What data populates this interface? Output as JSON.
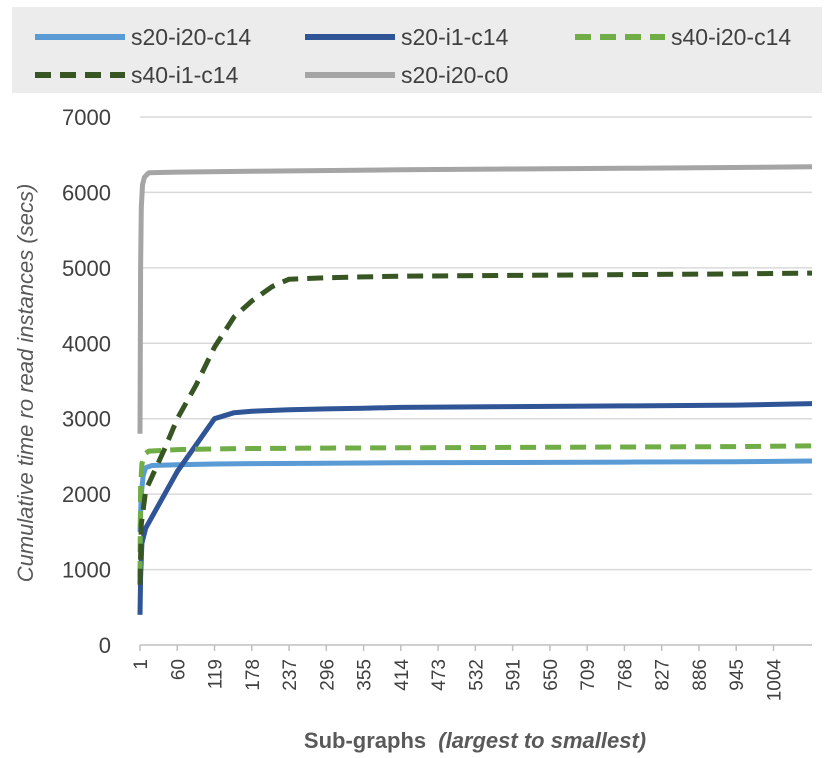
{
  "chart_data": {
    "type": "line",
    "title": "",
    "xlabel": "Sub-graphs",
    "xlabel_suffix": "(largest to smallest)",
    "ylabel": "Cumulative time ro read instances (secs)",
    "ylim": [
      0,
      7000
    ],
    "yticks": [
      "0",
      "1000",
      "2000",
      "3000",
      "4000",
      "5000",
      "6000",
      "7000"
    ],
    "xlim": [
      1,
      1065
    ],
    "xticks": [
      1,
      60,
      119,
      178,
      237,
      296,
      355,
      414,
      473,
      532,
      591,
      650,
      709,
      768,
      827,
      886,
      945,
      1004
    ],
    "grid": true,
    "legend_position": "top",
    "series": [
      {
        "name": "s20-i20-c14",
        "color": "#5b9bd5",
        "dash": "solid",
        "x": [
          1,
          3,
          6,
          10,
          20,
          60,
          119,
          178,
          296,
          414,
          591,
          768,
          945,
          1065
        ],
        "y": [
          1500,
          2000,
          2250,
          2350,
          2380,
          2390,
          2400,
          2405,
          2410,
          2415,
          2420,
          2425,
          2430,
          2440
        ]
      },
      {
        "name": "s20-i1-c14",
        "color": "#2f5597",
        "dash": "solid",
        "x": [
          1,
          2,
          4,
          10,
          60,
          119,
          150,
          178,
          237,
          296,
          355,
          414,
          591,
          768,
          945,
          1065
        ],
        "y": [
          400,
          900,
          1350,
          1550,
          2300,
          3000,
          3080,
          3100,
          3120,
          3130,
          3140,
          3150,
          3160,
          3170,
          3180,
          3200
        ]
      },
      {
        "name": "s40-i20-c14",
        "color": "#70ad47",
        "dash": "dashed",
        "x": [
          1,
          2,
          4,
          8,
          15,
          60,
          119,
          178,
          296,
          414,
          591,
          768,
          945,
          1065
        ],
        "y": [
          900,
          2100,
          2400,
          2530,
          2570,
          2590,
          2600,
          2605,
          2610,
          2615,
          2620,
          2625,
          2630,
          2640
        ]
      },
      {
        "name": "s40-i1-c14",
        "color": "#375623",
        "dash": "dashed",
        "x": [
          1,
          3,
          10,
          40,
          60,
          90,
          119,
          150,
          178,
          210,
          237,
          270,
          296,
          355,
          414,
          591,
          768,
          945,
          1065
        ],
        "y": [
          800,
          1600,
          2050,
          2600,
          3000,
          3450,
          3950,
          4350,
          4560,
          4750,
          4850,
          4860,
          4870,
          4880,
          4890,
          4900,
          4910,
          4920,
          4930
        ]
      },
      {
        "name": "s20-i20-c0",
        "color": "#a5a5a5",
        "dash": "solid",
        "x": [
          1,
          2,
          3,
          5,
          8,
          15,
          60,
          178,
          414,
          591,
          768,
          1065
        ],
        "y": [
          2800,
          5000,
          5800,
          6100,
          6200,
          6260,
          6270,
          6280,
          6300,
          6310,
          6320,
          6340
        ]
      }
    ]
  }
}
